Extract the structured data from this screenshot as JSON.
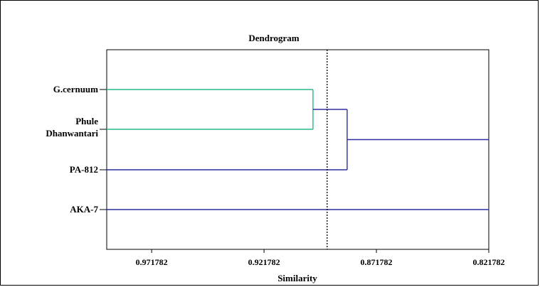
{
  "chart_data": {
    "type": "dendrogram",
    "title": "Dendrogram",
    "xlabel": "Similarity",
    "xlim": [
      0.991782,
      0.821782
    ],
    "xticks": [
      {
        "value": 0.971782,
        "label": "0.971782"
      },
      {
        "value": 0.921782,
        "label": "0.921782"
      },
      {
        "value": 0.871782,
        "label": "0.871782"
      },
      {
        "value": 0.821782,
        "label": "0.821782"
      }
    ],
    "leaves": [
      {
        "key": "gcernuum",
        "label_lines": [
          "G.cernuum"
        ],
        "slot": 0
      },
      {
        "key": "phule",
        "label_lines": [
          "Phule",
          "Dhanwantari"
        ],
        "slot": 1
      },
      {
        "key": "pa812",
        "label_lines": [
          "PA-812"
        ],
        "slot": 2
      },
      {
        "key": "aka7",
        "label_lines": [
          "AKA-7"
        ],
        "slot": 3
      }
    ],
    "merges": [
      {
        "members": [
          "G.cernuum",
          "Phule Dhanwantari"
        ],
        "similarity": 0.9,
        "color": "#2bb58a"
      },
      {
        "members": [
          "G.cernuum + Phule Dhanwantari",
          "PA-812"
        ],
        "similarity": 0.8848,
        "color": "#2e2f9e"
      },
      {
        "members": [
          "G.cernuum + Phule Dhanwantari + PA-812",
          "AKA-7"
        ],
        "similarity": 0.821782,
        "color": "#2e2f9e"
      }
    ],
    "cutoff_line": {
      "similarity": 0.8937,
      "style": "dotted",
      "color": "#000000"
    },
    "colors": {
      "cluster1": "#2bb58a",
      "default": "#2e2f9e",
      "axis": "#000000"
    }
  }
}
